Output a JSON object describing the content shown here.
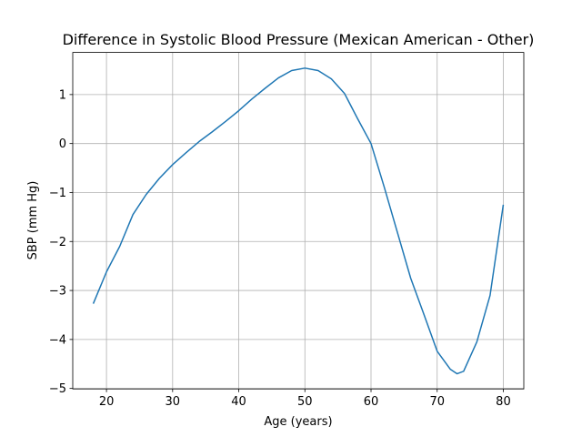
{
  "chart_data": {
    "type": "line",
    "title": "Difference in Systolic Blood Pressure (Mexican American - Other)",
    "xlabel": "Age (years)",
    "ylabel": "SBP (mm Hg)",
    "x": [
      18,
      20,
      22,
      24,
      26,
      28,
      30,
      32,
      34,
      36,
      38,
      40,
      42,
      44,
      46,
      48,
      50,
      52,
      54,
      56,
      58,
      60,
      62,
      64,
      66,
      68,
      70,
      72,
      73,
      74,
      76,
      78,
      80
    ],
    "values": [
      -3.27,
      -2.62,
      -2.1,
      -1.45,
      -1.04,
      -0.71,
      -0.43,
      -0.19,
      0.04,
      0.24,
      0.45,
      0.67,
      0.91,
      1.13,
      1.34,
      1.49,
      1.54,
      1.49,
      1.32,
      1.02,
      0.5,
      0.0,
      -0.89,
      -1.82,
      -2.75,
      -3.49,
      -4.24,
      -4.61,
      -4.7,
      -4.65,
      -4.05,
      -3.1,
      -1.25
    ],
    "color": "#1f77b4",
    "xlim": [
      14.9,
      83.1
    ],
    "ylim": [
      -5.01,
      1.86
    ],
    "xticks": [
      20,
      30,
      40,
      50,
      60,
      70,
      80
    ],
    "yticks": [
      {
        "value": -5,
        "label": "−5"
      },
      {
        "value": -4,
        "label": "−4"
      },
      {
        "value": -3,
        "label": "−3"
      },
      {
        "value": -2,
        "label": "−2"
      },
      {
        "value": -1,
        "label": "−1"
      },
      0,
      1
    ],
    "grid": true
  }
}
